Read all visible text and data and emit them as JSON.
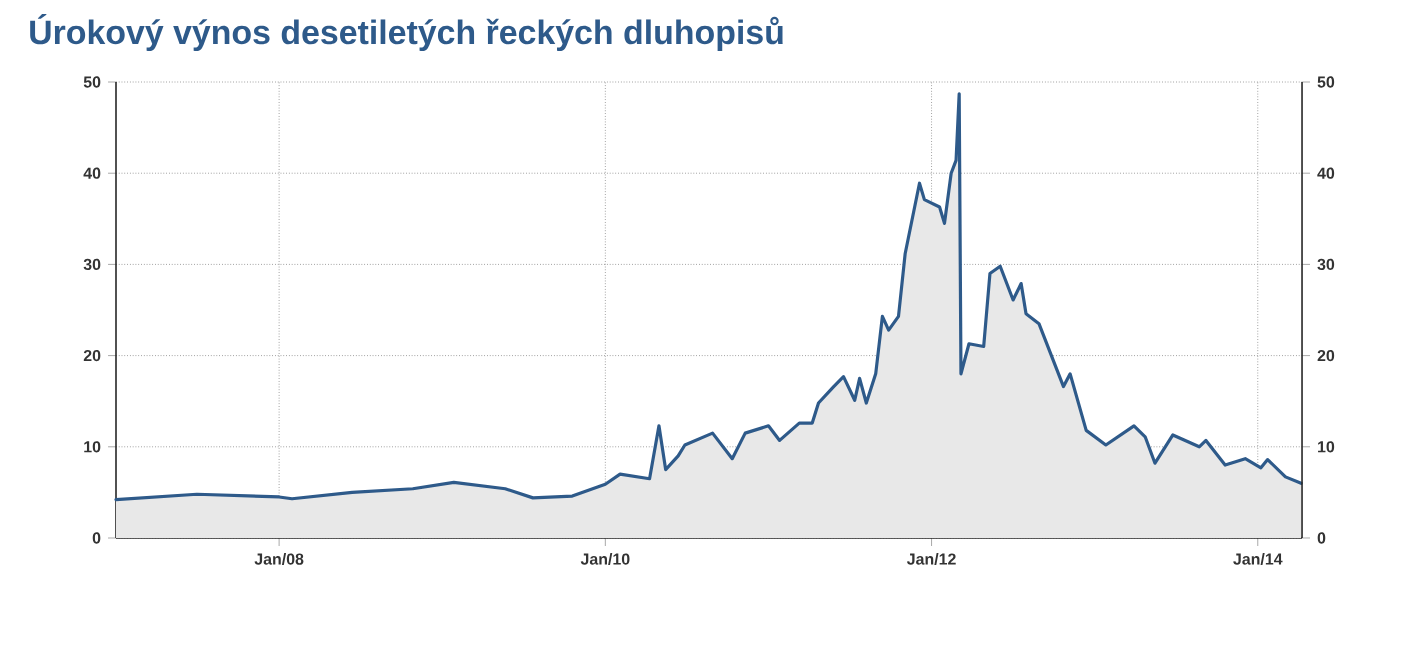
{
  "chart_data": {
    "type": "area",
    "title": "Úrokový výnos desetiletých řeckých dluhopisů",
    "x": [
      "2007-01-01",
      "2007-07-01",
      "2008-01-01",
      "2008-01-30",
      "2008-06-13",
      "2008-10-27",
      "2009-01-27",
      "2009-05-22",
      "2009-07-23",
      "2009-10-19",
      "2010-01-01",
      "2010-02-03",
      "2010-04-10",
      "2010-05-01",
      "2010-05-16",
      "2010-06-13",
      "2010-06-28",
      "2010-08-29",
      "2010-10-12",
      "2010-11-10",
      "2011-01-01",
      "2011-01-26",
      "2011-03-11",
      "2011-04-09",
      "2011-04-23",
      "2011-05-27",
      "2011-06-18",
      "2011-07-13",
      "2011-07-24",
      "2011-08-08",
      "2011-08-29",
      "2011-09-13",
      "2011-09-27",
      "2011-10-19",
      "2011-11-03",
      "2011-12-05",
      "2011-12-16",
      "2012-01-19",
      "2012-01-30",
      "2012-02-14",
      "2012-02-25",
      "2012-03-03",
      "2012-03-07",
      "2012-03-25",
      "2012-04-27",
      "2012-05-11",
      "2012-06-03",
      "2012-07-02",
      "2012-07-20",
      "2012-07-31",
      "2012-08-29",
      "2012-10-23",
      "2012-11-07",
      "2012-12-13",
      "2013-01-26",
      "2013-03-30",
      "2013-04-24",
      "2013-05-16",
      "2013-06-25",
      "2013-08-23",
      "2013-09-07",
      "2013-10-20",
      "2013-12-04",
      "2014-01-08",
      "2014-01-23",
      "2014-03-04",
      "2014-04-08"
    ],
    "values": [
      4.2,
      4.8,
      4.5,
      4.3,
      5.0,
      5.4,
      6.1,
      5.4,
      4.4,
      4.6,
      5.9,
      7.0,
      6.5,
      12.3,
      7.5,
      9.0,
      10.2,
      11.5,
      8.7,
      11.5,
      12.3,
      10.7,
      12.6,
      12.6,
      14.8,
      16.6,
      17.7,
      15.1,
      17.5,
      14.8,
      18.0,
      24.3,
      22.8,
      24.3,
      31.2,
      38.9,
      37.1,
      36.3,
      34.5,
      40.0,
      41.4,
      48.7,
      18.0,
      21.3,
      21.0,
      29.0,
      29.8,
      26.1,
      27.9,
      24.6,
      23.5,
      16.6,
      18.0,
      11.8,
      10.2,
      12.3,
      11.1,
      8.2,
      11.3,
      10.0,
      10.7,
      8.0,
      8.7,
      7.7,
      8.6,
      6.7,
      6.0
    ],
    "color": "#2e5a8a",
    "xlim": [
      "2007-01-01",
      "2014-04-10"
    ],
    "xticks": [
      {
        "value": "2008-01-01",
        "label": "Jan/08"
      },
      {
        "value": "2010-01-01",
        "label": "Jan/10"
      },
      {
        "value": "2012-01-01",
        "label": "Jan/12"
      },
      {
        "value": "2014-01-01",
        "label": "Jan/14"
      }
    ],
    "ylim": [
      0,
      50
    ],
    "yticks": [
      0,
      10,
      20,
      30,
      40,
      50
    ],
    "y2lim": [
      0,
      50
    ],
    "y2ticks": [
      0,
      10,
      20,
      30,
      40,
      50
    ],
    "grid": true
  }
}
